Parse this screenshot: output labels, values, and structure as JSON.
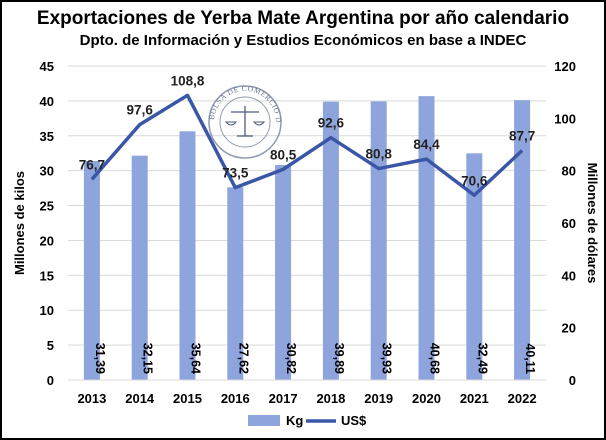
{
  "chart_data": {
    "type": "bar",
    "title": "Exportaciones de Yerba Mate Argentina por año calendario",
    "subtitle": "Dpto. de Información y Estudios Económicos en base a INDEC",
    "categories": [
      "2013",
      "2014",
      "2015",
      "2016",
      "2017",
      "2018",
      "2019",
      "2020",
      "2021",
      "2022"
    ],
    "series": [
      {
        "name": "Kg",
        "type": "bar",
        "axis": "left",
        "values": [
          31.39,
          32.15,
          35.64,
          27.62,
          30.82,
          39.89,
          39.93,
          40.68,
          32.49,
          40.11
        ],
        "labels": [
          "31,39",
          "32,15",
          "35,64",
          "27,62",
          "30,82",
          "39,89",
          "39,93",
          "40,68",
          "32,49",
          "40,11"
        ],
        "color": "#8ea4dc"
      },
      {
        "name": "US$",
        "type": "line",
        "axis": "right",
        "values": [
          76.7,
          97.6,
          108.8,
          73.5,
          80.5,
          92.6,
          80.8,
          84.4,
          70.6,
          87.7
        ],
        "labels": [
          "76,7",
          "97,6",
          "108,8",
          "73,5",
          "80,5",
          "92,6",
          "80,8",
          "84,4",
          "70,6",
          "87,7"
        ],
        "color": "#3a56a6"
      }
    ],
    "ylabel": "Millones de kilos",
    "y2label": "Millones de dólares",
    "ylim": [
      0,
      45
    ],
    "yticks": [
      0,
      5,
      10,
      15,
      20,
      25,
      30,
      35,
      40,
      45
    ],
    "y2lim": [
      0,
      120
    ],
    "y2ticks": [
      0,
      20,
      40,
      60,
      80,
      100,
      120
    ],
    "grid": true,
    "legend": "bottom"
  },
  "watermark": {
    "text": "BOLSA DE COMERCIO DE ROSARIO"
  }
}
